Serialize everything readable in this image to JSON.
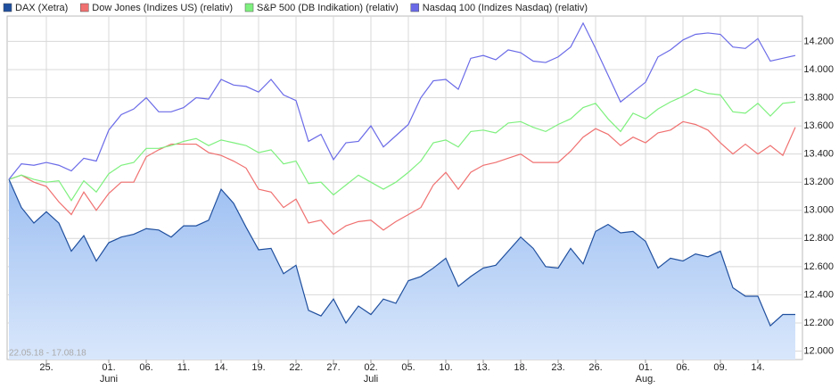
{
  "chart_data": {
    "type": "line",
    "annotation": "22.05.18 - 17.08.18",
    "categories": [
      null,
      null,
      null,
      "25.",
      null,
      null,
      null,
      null,
      "01.",
      null,
      null,
      "06.",
      null,
      null,
      "11.",
      null,
      null,
      "14.",
      null,
      null,
      "19.",
      null,
      null,
      "22.",
      null,
      null,
      "27.",
      null,
      null,
      "02.",
      null,
      null,
      "05.",
      null,
      null,
      "10.",
      null,
      null,
      "13.",
      null,
      null,
      "18.",
      null,
      null,
      "23.",
      null,
      null,
      "26.",
      null,
      null,
      null,
      "01.",
      null,
      null,
      "06.",
      null,
      null,
      "09.",
      null,
      null,
      "14.",
      null,
      null,
      null
    ],
    "months": [
      null,
      null,
      null,
      null,
      null,
      null,
      null,
      null,
      "Juni",
      null,
      null,
      null,
      null,
      null,
      null,
      null,
      null,
      null,
      null,
      null,
      null,
      null,
      null,
      null,
      null,
      null,
      null,
      null,
      null,
      "Juli",
      null,
      null,
      null,
      null,
      null,
      null,
      null,
      null,
      null,
      null,
      null,
      null,
      null,
      null,
      null,
      null,
      null,
      null,
      null,
      null,
      null,
      "Aug.",
      null,
      null,
      null,
      null,
      null,
      null,
      null,
      null,
      null,
      null,
      null,
      null
    ],
    "series": [
      {
        "name": "DAX (Xetra)",
        "color": "#1f4f9e",
        "area": true,
        "values": [
          13220,
          13020,
          12910,
          12990,
          12910,
          12710,
          12820,
          12640,
          12770,
          12810,
          12830,
          12870,
          12860,
          12810,
          12890,
          12890,
          12930,
          13150,
          13050,
          12880,
          12720,
          12730,
          12550,
          12610,
          12290,
          12250,
          12370,
          12200,
          12320,
          12260,
          12370,
          12340,
          12500,
          12530,
          12590,
          12660,
          12460,
          12530,
          12590,
          12610,
          12710,
          12810,
          12730,
          12600,
          12590,
          12730,
          12620,
          12850,
          12900,
          12840,
          12850,
          12780,
          12590,
          12660,
          12640,
          12690,
          12670,
          12710,
          12450,
          12390,
          12390,
          12180,
          12260,
          12260
        ]
      },
      {
        "name": "Dow Jones (Indizes US) (relativ)",
        "color": "#f07070",
        "area": false,
        "values": [
          13220,
          13250,
          13200,
          13170,
          13060,
          12970,
          13130,
          13000,
          13120,
          13200,
          13200,
          13380,
          13430,
          13470,
          13470,
          13470,
          13410,
          13390,
          13350,
          13300,
          13150,
          13130,
          13020,
          13080,
          12910,
          12930,
          12830,
          12890,
          12920,
          12930,
          12860,
          12920,
          12970,
          13020,
          13180,
          13270,
          13150,
          13270,
          13320,
          13340,
          13370,
          13400,
          13340,
          13340,
          13340,
          13420,
          13520,
          13580,
          13540,
          13460,
          13520,
          13480,
          13550,
          13570,
          13630,
          13610,
          13570,
          13480,
          13400,
          13470,
          13400,
          13460,
          13390,
          13590
        ]
      },
      {
        "name": "S&P 500 (DB Indikation) (relativ)",
        "color": "#7ef07e",
        "area": false,
        "values": [
          13220,
          13250,
          13220,
          13200,
          13210,
          13070,
          13210,
          13130,
          13260,
          13320,
          13340,
          13440,
          13440,
          13460,
          13490,
          13510,
          13460,
          13500,
          13480,
          13460,
          13410,
          13430,
          13330,
          13350,
          13190,
          13200,
          13110,
          13180,
          13250,
          13200,
          13150,
          13200,
          13270,
          13350,
          13480,
          13500,
          13450,
          13560,
          13570,
          13550,
          13620,
          13630,
          13590,
          13560,
          13610,
          13650,
          13730,
          13760,
          13650,
          13560,
          13690,
          13650,
          13720,
          13770,
          13810,
          13860,
          13830,
          13820,
          13700,
          13690,
          13760,
          13670,
          13760,
          13770
        ]
      },
      {
        "name": "Nasdaq 100 (Indizes Nasdaq) (relativ)",
        "color": "#6a6ae8",
        "area": false,
        "values": [
          13220,
          13330,
          13320,
          13340,
          13320,
          13280,
          13370,
          13350,
          13570,
          13680,
          13720,
          13800,
          13700,
          13700,
          13730,
          13800,
          13790,
          13930,
          13890,
          13880,
          13840,
          13930,
          13820,
          13780,
          13490,
          13540,
          13360,
          13480,
          13490,
          13600,
          13450,
          13530,
          13610,
          13800,
          13920,
          13930,
          13860,
          14080,
          14100,
          14070,
          14140,
          14120,
          14060,
          14050,
          14090,
          14160,
          14330,
          14150,
          13960,
          13770,
          13840,
          13910,
          14090,
          14140,
          14210,
          14250,
          14260,
          14250,
          14160,
          14150,
          14220,
          14060,
          14080,
          14100
        ]
      }
    ],
    "ylim": [
      11940,
      14380
    ],
    "yticks": [
      {
        "value": 12000,
        "label": "12.000"
      },
      {
        "value": 12200,
        "label": "12.200"
      },
      {
        "value": 12400,
        "label": "12.400"
      },
      {
        "value": 12600,
        "label": "12.600"
      },
      {
        "value": 12800,
        "label": "12.800"
      },
      {
        "value": 13000,
        "label": "13.000"
      },
      {
        "value": 13200,
        "label": "13.200"
      },
      {
        "value": 13400,
        "label": "13.400"
      },
      {
        "value": 13600,
        "label": "13.600"
      },
      {
        "value": 13800,
        "label": "13.800"
      },
      {
        "value": 14000,
        "label": "14.000"
      },
      {
        "value": 14200,
        "label": "14.200"
      }
    ],
    "grid": true
  }
}
